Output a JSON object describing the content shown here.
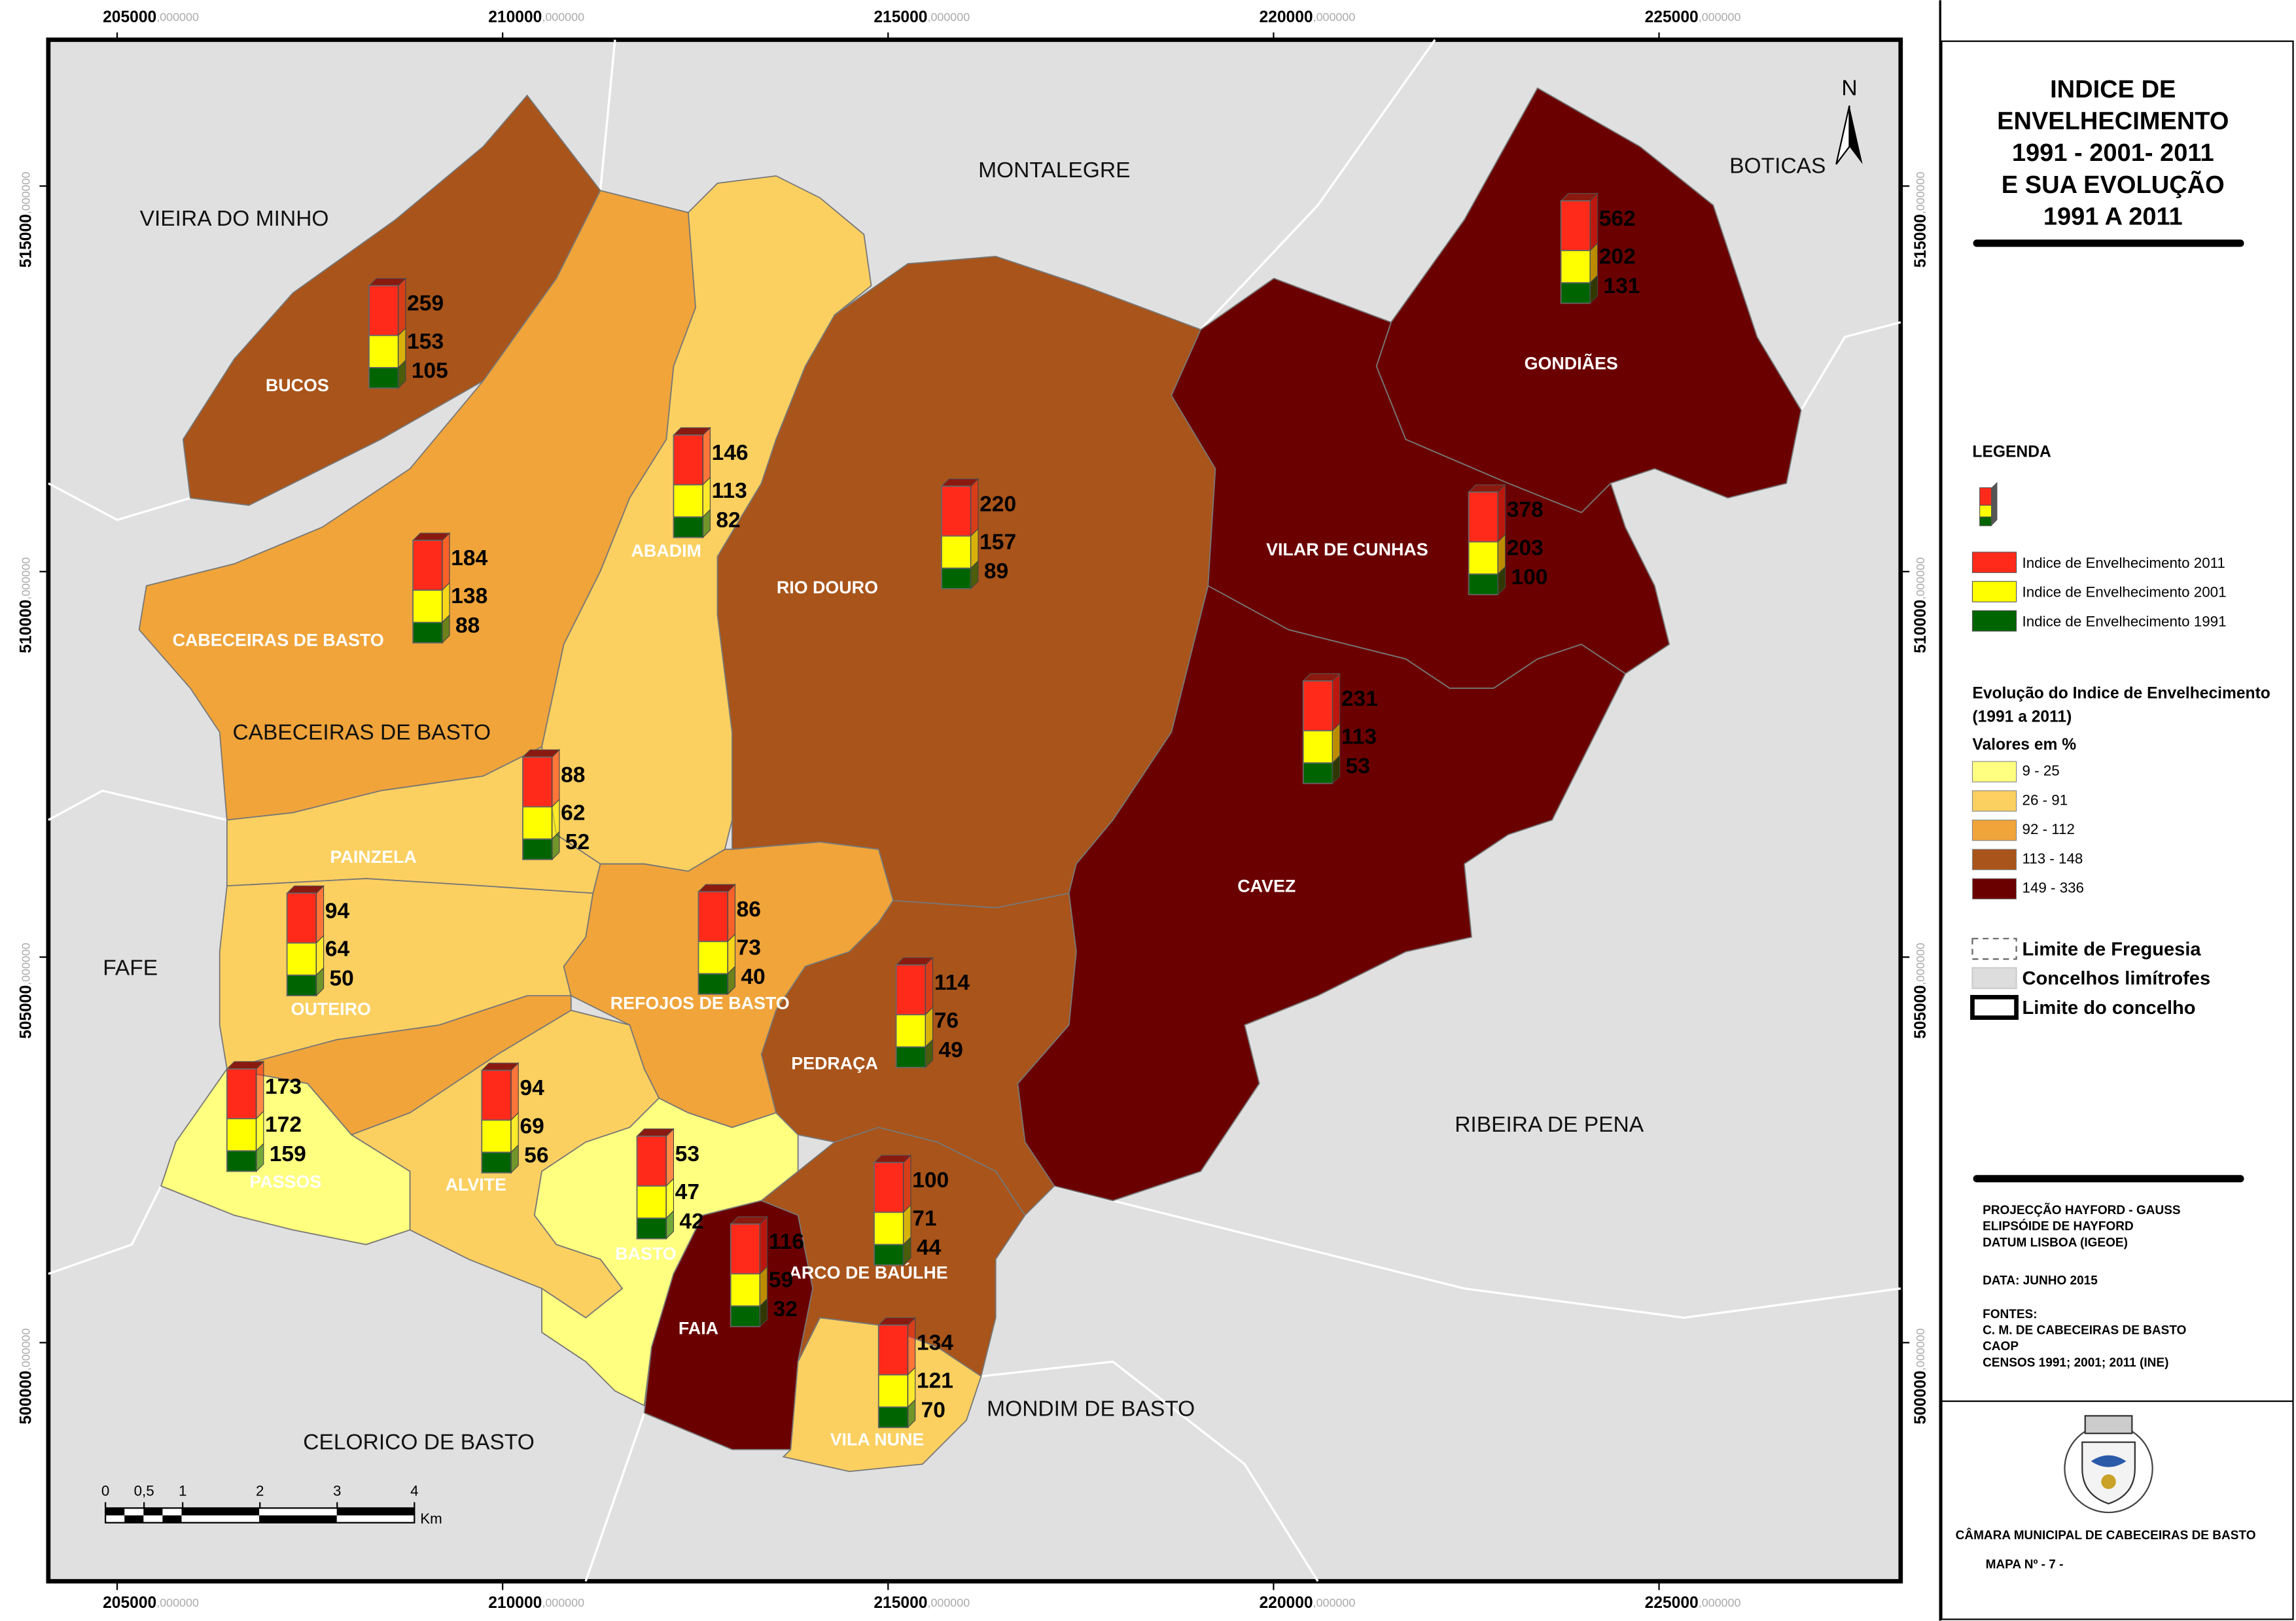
{
  "title_lines": [
    "INDICE DE",
    "ENVELHECIMENTO",
    "1991 - 2001- 2011",
    "E SUA EVOLUÇÃO",
    "1991 A 2011"
  ],
  "neighbors": [
    "VIEIRA DO MINHO",
    "MONTALEGRE",
    "BOTICAS",
    "FAFE",
    "RIBEIRA DE PENA",
    "MONDIM DE BASTO",
    "CELORICO DE BASTO"
  ],
  "concelho_label": "CABECEIRAS DE BASTO",
  "freguesias": [
    {
      "name": "BUCOS",
      "class": 3,
      "values": [
        259,
        153,
        105
      ]
    },
    {
      "name": "ABADIM",
      "class": 1,
      "values": [
        146,
        113,
        82
      ]
    },
    {
      "name": "RIO DOURO",
      "class": 3,
      "values": [
        220,
        157,
        89
      ]
    },
    {
      "name": "GONDIÃES",
      "class": 4,
      "values": [
        562,
        202,
        131
      ]
    },
    {
      "name": "VILAR DE CUNHAS",
      "class": 4,
      "values": [
        378,
        203,
        100
      ]
    },
    {
      "name": "CABECEIRAS DE BASTO",
      "class": 2,
      "values": [
        184,
        138,
        88
      ]
    },
    {
      "name": "CAVEZ",
      "class": 4,
      "values": [
        231,
        113,
        53
      ]
    },
    {
      "name": "PAINZELA",
      "class": 1,
      "values": [
        88,
        62,
        52
      ]
    },
    {
      "name": "OUTEIRO",
      "class": 1,
      "values": [
        94,
        64,
        50
      ]
    },
    {
      "name": "REFOJOS DE BASTO",
      "class": 2,
      "values": [
        86,
        73,
        40
      ]
    },
    {
      "name": "PEDRAÇA",
      "class": 3,
      "values": [
        114,
        76,
        49
      ]
    },
    {
      "name": "PASSOS",
      "class": 0,
      "values": [
        173,
        172,
        159
      ]
    },
    {
      "name": "ALVITE",
      "class": 1,
      "values": [
        94,
        69,
        56
      ]
    },
    {
      "name": "BASTO",
      "class": 0,
      "values": [
        53,
        47,
        42
      ]
    },
    {
      "name": "ARCO DE BAÚLHE",
      "class": 3,
      "values": [
        100,
        71,
        44
      ]
    },
    {
      "name": "FAIA",
      "class": 4,
      "values": [
        116,
        59,
        32
      ]
    },
    {
      "name": "VILA NUNE",
      "class": 1,
      "values": [
        134,
        121,
        70
      ]
    }
  ],
  "legend": {
    "title": "LEGENDA",
    "series": [
      {
        "name": "Indice de Envelhecimento 2011",
        "color": "#ff2a1a"
      },
      {
        "name": "Indice de Envelhecimento 2001",
        "color": "#ffff00"
      },
      {
        "name": "Indice de Envelhecimento 1991",
        "color": "#006400"
      }
    ],
    "evolution_title": "Evolução do Indice de Envelhecimento",
    "evolution_period": "(1991 a 2011)",
    "units": "Valores em %",
    "classes": [
      {
        "label": "9 - 25",
        "color": "#ffff80"
      },
      {
        "label": "26 - 91",
        "color": "#fcd060"
      },
      {
        "label": "92 - 112",
        "color": "#f0a43a"
      },
      {
        "label": "113 - 148",
        "color": "#a9541a"
      },
      {
        "label": "149 - 336",
        "color": "#6b0000"
      }
    ],
    "boundaries": [
      "Limite de Freguesia",
      "Concelhos limítrofes",
      "Limite do concelho"
    ]
  },
  "xticks": [
    {
      "value": 205000,
      "label": "205000,000000"
    },
    {
      "value": 210000,
      "label": "210000,000000"
    },
    {
      "value": 215000,
      "label": "215000,000000"
    },
    {
      "value": 220000,
      "label": "220000,000000"
    },
    {
      "value": 225000,
      "label": "225000,000000"
    }
  ],
  "yticks": [
    {
      "value": 500000,
      "label": "500000,000000"
    },
    {
      "value": 505000,
      "label": "505000,000000"
    },
    {
      "value": 510000,
      "label": "510000,000000"
    },
    {
      "value": 515000,
      "label": "515000,000000"
    }
  ],
  "scale_bar": {
    "ticks": [
      {
        "value": 0,
        "label": "0"
      },
      {
        "value": 0.5,
        "label": "0,5"
      },
      1,
      2,
      3,
      4
    ],
    "unit": "Km"
  },
  "north": "N",
  "notes": [
    "PROJECÇÃO HAYFORD - GAUSS",
    "ELIPSÓIDE DE HAYFORD",
    "DATUM LISBOA (IGEOE)",
    "DATA:  JUNHO 2015",
    "FONTES:",
    "C. M. DE CABECEIRAS DE BASTO",
    "CAOP",
    "CENSOS 1991; 2001; 2011 (INE)"
  ],
  "footer": {
    "org": "CÂMARA MUNICIPAL DE CABECEIRAS DE BASTO",
    "map_no": "MAPA Nº - 7 -"
  }
}
